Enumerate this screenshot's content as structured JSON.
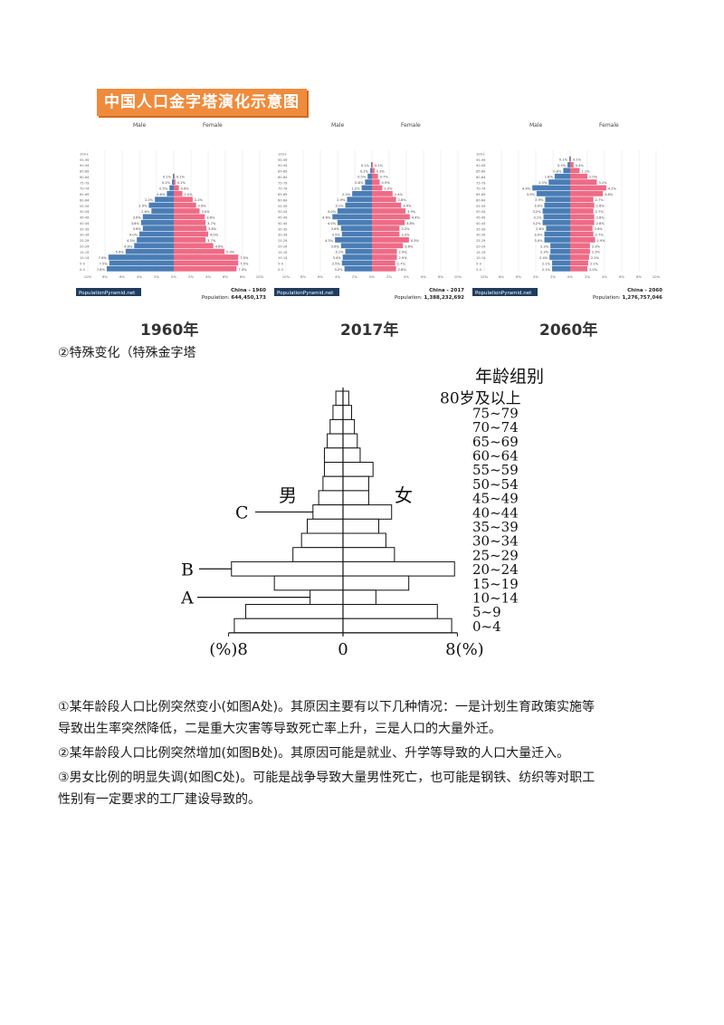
{
  "banner": "中国人口金字塔演化示意图",
  "pyramids": [
    {
      "year_label": "1960年",
      "male": "Male",
      "female": "Female",
      "site": "PopulationPyramid.net",
      "country_year": "China - 1960",
      "population_label": "Population:",
      "population": "644,450,173",
      "ages": [
        "100+",
        "95-99",
        "90-94",
        "85-89",
        "80-84",
        "75-79",
        "70-74",
        "65-69",
        "60-64",
        "55-59",
        "50-54",
        "45-49",
        "40-44",
        "35-39",
        "30-34",
        "25-29",
        "20-24",
        "15-19",
        "10-14",
        "5-9",
        "0-4"
      ],
      "male_pct": [
        0,
        0,
        0,
        0,
        0.1,
        0.2,
        0.5,
        0.8,
        2.2,
        2.9,
        2.6,
        3.6,
        3.8,
        3.6,
        4.0,
        4.3,
        4.6,
        5.6,
        7.6,
        7.5,
        7.8
      ],
      "female_pct": [
        0,
        0,
        0,
        0,
        0.1,
        0.2,
        0.6,
        1.0,
        2.2,
        2.6,
        3.0,
        3.6,
        3.7,
        3.8,
        4.0,
        3.7,
        4.6,
        5.9,
        7.5,
        7.5,
        7.3
      ],
      "axis_ticks": [
        "10%",
        "8%",
        "6%",
        "4%",
        "2%",
        "0%",
        "2%",
        "4%",
        "6%",
        "8%",
        "10%"
      ]
    },
    {
      "year_label": "2017年",
      "male": "Male",
      "female": "Female",
      "site": "PopulationPyramid.net",
      "country_year": "China - 2017",
      "population_label": "Population:",
      "population": "1,388,232,692",
      "ages": [
        "100+",
        "95-99",
        "90-94",
        "85-89",
        "80-84",
        "75-79",
        "70-74",
        "65-69",
        "60-64",
        "55-59",
        "50-54",
        "45-49",
        "40-44",
        "35-39",
        "30-34",
        "25-29",
        "20-24",
        "15-19",
        "10-14",
        "5-9",
        "0-4"
      ],
      "male_pct": [
        0,
        0,
        0.1,
        0.2,
        0.5,
        0.8,
        1.2,
        2.3,
        2.9,
        3.1,
        4.0,
        4.6,
        4.0,
        3.6,
        3.5,
        4.3,
        3.6,
        3.1,
        3.4,
        3.5,
        3.2
      ],
      "female_pct": [
        0,
        0,
        0.1,
        0.3,
        0.7,
        0.9,
        1.2,
        2.4,
        2.8,
        3.4,
        3.9,
        4.4,
        3.8,
        3.2,
        3.2,
        4.3,
        3.6,
        2.9,
        2.9,
        2.7,
        2.8
      ],
      "axis_ticks": [
        "10%",
        "8%",
        "6%",
        "4%",
        "2%",
        "0%",
        "2%",
        "4%",
        "6%",
        "8%",
        "10%"
      ]
    },
    {
      "year_label": "2060年",
      "male": "Male",
      "female": "Female",
      "site": "PopulationPyramid.net",
      "country_year": "China - 2060",
      "population_label": "Population:",
      "population": "1,276,757,046",
      "ages": [
        "100+",
        "95-99",
        "90-94",
        "85-89",
        "80-84",
        "75-79",
        "70-74",
        "65-69",
        "60-64",
        "55-59",
        "50-54",
        "45-49",
        "40-44",
        "35-39",
        "30-34",
        "25-29",
        "20-24",
        "15-19",
        "10-14",
        "5-9",
        "0-4"
      ],
      "male_pct": [
        0,
        0.1,
        0.3,
        0.8,
        1.8,
        2.5,
        4.4,
        3.9,
        2.9,
        3.0,
        3.2,
        3.1,
        3.2,
        2.8,
        3.0,
        3.0,
        2.3,
        2.3,
        2.4,
        2.1,
        2.1
      ],
      "female_pct": [
        0,
        0.1,
        0.4,
        1.1,
        2.0,
        3.1,
        4.2,
        3.8,
        2.7,
        2.8,
        2.7,
        2.8,
        2.8,
        2.6,
        2.7,
        2.9,
        2.3,
        2.3,
        2.2,
        2.1,
        2.0
      ],
      "axis_ticks": [
        "10%",
        "8%",
        "6%",
        "4%",
        "2%",
        "0%",
        "2%",
        "4%",
        "6%",
        "8%",
        "10%"
      ]
    }
  ],
  "section2_heading": "②特殊变化（特殊金字塔",
  "special_pyramid": {
    "title": "年龄组别",
    "male_label": "男",
    "female_label": "女",
    "markers": {
      "a": "A",
      "b": "B",
      "c": "C"
    },
    "x_left_label": "(%)8",
    "x_center_label": "0",
    "x_right_label": "8(%)",
    "age_labels": [
      "80岁及以上",
      "75~79",
      "70~74",
      "65~69",
      "60~64",
      "55~59",
      "50~54",
      "45~49",
      "40~44",
      "35~39",
      "30~34",
      "25~29",
      "20~24",
      "15~19",
      "10~14",
      "5~9",
      "0~4"
    ],
    "male_pct": [
      0.5,
      0.7,
      0.9,
      1.1,
      1.3,
      1.3,
      1.4,
      1.7,
      2.1,
      2.5,
      2.9,
      3.5,
      7.8,
      4.8,
      2.3,
      6.8,
      7.6
    ],
    "female_pct": [
      0.4,
      0.6,
      0.8,
      1.0,
      1.2,
      2.1,
      1.8,
      1.8,
      3.4,
      2.5,
      3.0,
      3.6,
      7.8,
      4.6,
      2.3,
      6.6,
      7.6
    ]
  },
  "paragraphs": [
    "①某年龄段人口比例突然变小(如图A处)。其原因主要有以下几种情况：一是计划生育政策实施等",
    "导致出生率突然降低，二是重大灾害等导致死亡率上升，三是人口的大量外迁。",
    "②某年龄段人口比例突然增加(如图B处)。其原因可能是就业、升学等导致的人口大量迁入。",
    "③男女比例的明显失调(如图C处)。可能是战争导致大量男性死亡，也可能是钢铁、纺织等对职工",
    "性别有一定要求的工厂建设导致的。"
  ],
  "colors": {
    "male": "#4a7db5",
    "female": "#ee6b86",
    "banner": "#ef8b3c"
  }
}
